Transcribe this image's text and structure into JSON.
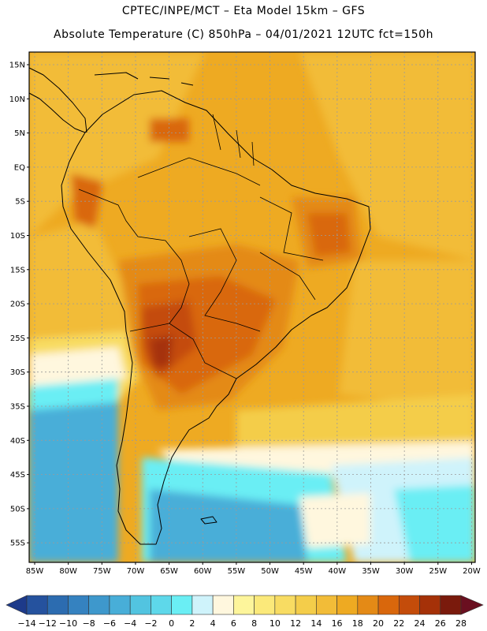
{
  "header": {
    "title_line1": "CPTEC/INPE/MCT –  Eta Model 15km – GFS",
    "title_line2": "Absolute Temperature (C) 850hPa – 04/01/2021 12UTC fct=150h"
  },
  "map": {
    "lat_labels": [
      "15N",
      "10N",
      "5N",
      "EQ",
      "5S",
      "10S",
      "15S",
      "20S",
      "25S",
      "30S",
      "35S",
      "40S",
      "45S",
      "50S",
      "55S"
    ],
    "lon_labels": [
      "85W",
      "80W",
      "75W",
      "70W",
      "65W",
      "60W",
      "55W",
      "50W",
      "45W",
      "40W",
      "35W",
      "30W",
      "25W",
      "20W"
    ]
  },
  "colorbar": {
    "labels": [
      "-14",
      "-12",
      "-10",
      "-8",
      "-6",
      "-4",
      "-2",
      "0",
      "2",
      "4",
      "6",
      "8",
      "10",
      "12",
      "14",
      "16",
      "18",
      "20",
      "22",
      "24",
      "26",
      "28"
    ],
    "colors": [
      "#1d3a8a",
      "#25529e",
      "#2c6cb0",
      "#3582c0",
      "#3e98cc",
      "#48aed8",
      "#52c4e0",
      "#5ed8ea",
      "#6aeef4",
      "#cff3fb",
      "#fff7de",
      "#fdf59b",
      "#fbe97a",
      "#f8dc62",
      "#f4cd4a",
      "#f2bc38",
      "#eeaa22",
      "#e48a16",
      "#d9670c",
      "#c44c0a",
      "#a53108",
      "#7a1a0c",
      "#6a0f20"
    ],
    "value_min": -14,
    "value_max": 28,
    "step": 2
  }
}
